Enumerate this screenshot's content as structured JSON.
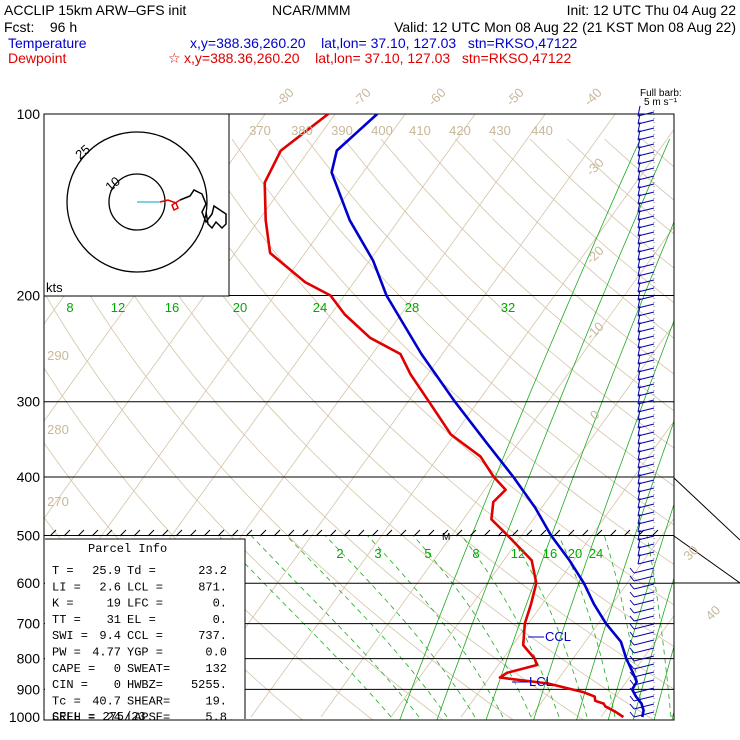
{
  "header": {
    "line1_left": "ACCLIP 15km ARW–GFS init",
    "line1_center": "NCAR/MMM",
    "line1_right": "Init: 12 UTC Thu 04 Aug 22",
    "line2_left": "Fcst:    96 h",
    "line2_right": "Valid: 12 UTC Mon 08 Aug 22 (21 KST Mon 08 Aug 22)",
    "temp_label": "Temperature",
    "temp_info": "x,y=388.36,260.20    lat,lon= 37.10, 127.03   stn=RKSO,47122",
    "dew_label": "Dewpoint",
    "dew_info": "x,y=388.36,260.20    lat,lon= 37.10, 127.03   stn=RKSO,47122",
    "dew_marker": "☆",
    "temp_color": "#0000cc",
    "dew_color": "#e00000"
  },
  "barb_label": {
    "line1": "Full barb:",
    "line2": "5 m s⁻¹"
  },
  "hodograph": {
    "units_label": "kts",
    "ring_labels": [
      "25",
      "10"
    ]
  },
  "markers": {
    "ccl": "CCL",
    "lcl": "LCL",
    "m": "M"
  },
  "parcel_info": {
    "title": "Parcel Info",
    "rows": [
      [
        "T   =",
        "25.9",
        "Td =",
        "23.2"
      ],
      [
        "LI  =",
        "2.6",
        "LCL =",
        "871."
      ],
      [
        "K   =",
        "19",
        "LFC =",
        "0."
      ],
      [
        "TT  =",
        "31",
        "EL  =",
        "0."
      ],
      [
        "SWI =",
        "9.4",
        "CCL =",
        "737."
      ],
      [
        "PW  =",
        "4.77",
        "YGP =",
        "0.0"
      ],
      [
        "CAPE =",
        "0",
        "SWEAT=",
        "132"
      ],
      [
        "CIN =",
        "0",
        "HWBZ=",
        "5255."
      ],
      [
        "Tc  =",
        "40.7",
        "SHEAR=",
        "19."
      ],
      [
        "SREH =",
        "24",
        "LAPSE=",
        "5.8"
      ]
    ],
    "cell": "CELL = 275/23"
  },
  "chart_data": {
    "type": "line",
    "title": "",
    "pressure_levels": [
      {
        "p": 100,
        "label": "100"
      },
      {
        "p": 200,
        "label": "200"
      },
      {
        "p": 300,
        "label": "300"
      },
      {
        "p": 400,
        "label": "400"
      },
      {
        "p": 500,
        "label": "500"
      },
      {
        "p": 600,
        "label": "600"
      },
      {
        "p": 700,
        "label": "700"
      },
      {
        "p": 800,
        "label": "800"
      },
      {
        "p": 900,
        "label": "900"
      },
      {
        "p": 1000,
        "label": "1000"
      }
    ],
    "temperature_labels": [
      "-80",
      "-70",
      "-60",
      "-50",
      "-40",
      "-30",
      "-20",
      "-10",
      "0",
      "30",
      "40"
    ],
    "theta_labels": [
      "370",
      "380",
      "390",
      "400",
      "410",
      "420",
      "430",
      "440",
      "290",
      "280",
      "270"
    ],
    "mixing_ratio_labels_upper": [
      "8",
      "12",
      "16",
      "20",
      "24",
      "28",
      "32"
    ],
    "mixing_ratio_labels_lower": [
      "2",
      "3",
      "5",
      "8",
      "12",
      "16",
      "20",
      "24"
    ],
    "series": [
      {
        "name": "Temperature",
        "color": "#0000cc",
        "points": [
          [
            1000,
            25.9
          ],
          [
            975,
            25.4
          ],
          [
            950,
            24.4
          ],
          [
            925,
            22.9
          ],
          [
            900,
            21.6
          ],
          [
            875,
            21.5
          ],
          [
            850,
            20.3
          ],
          [
            800,
            17.6
          ],
          [
            750,
            15.1
          ],
          [
            700,
            11.1
          ],
          [
            650,
            7.4
          ],
          [
            600,
            3.8
          ],
          [
            550,
            -0.6
          ],
          [
            500,
            -5.8
          ],
          [
            450,
            -10.9
          ],
          [
            400,
            -17.2
          ],
          [
            350,
            -24.7
          ],
          [
            300,
            -33.3
          ],
          [
            250,
            -43.0
          ],
          [
            200,
            -54.0
          ],
          [
            175,
            -59.5
          ],
          [
            150,
            -67.0
          ],
          [
            125,
            -74.5
          ],
          [
            115,
            -76.0
          ],
          [
            100,
            -74.0
          ]
        ]
      },
      {
        "name": "Dewpoint",
        "color": "#e00000",
        "points": [
          [
            1000,
            23.2
          ],
          [
            980,
            21.5
          ],
          [
            960,
            19.5
          ],
          [
            950,
            19.0
          ],
          [
            940,
            17.5
          ],
          [
            925,
            17.0
          ],
          [
            910,
            15.0
          ],
          [
            880,
            9.0
          ],
          [
            860,
            1.5
          ],
          [
            845,
            2.0
          ],
          [
            820,
            5.5
          ],
          [
            800,
            4.5
          ],
          [
            760,
            1.5
          ],
          [
            700,
            -0.5
          ],
          [
            650,
            -1.6
          ],
          [
            600,
            -3.0
          ],
          [
            550,
            -6.0
          ],
          [
            500,
            -12.0
          ],
          [
            470,
            -16.0
          ],
          [
            440,
            -17.5
          ],
          [
            420,
            -17.0
          ],
          [
            400,
            -20.0
          ],
          [
            370,
            -24.0
          ],
          [
            340,
            -30.5
          ],
          [
            300,
            -37.0
          ],
          [
            270,
            -42.5
          ],
          [
            250,
            -46.0
          ],
          [
            235,
            -52.0
          ],
          [
            215,
            -58.0
          ],
          [
            200,
            -62.0
          ],
          [
            190,
            -67.0
          ],
          [
            170,
            -75.0
          ],
          [
            150,
            -79.0
          ],
          [
            130,
            -83.0
          ],
          [
            115,
            -84.0
          ],
          [
            100,
            -81.0
          ]
        ]
      }
    ]
  }
}
